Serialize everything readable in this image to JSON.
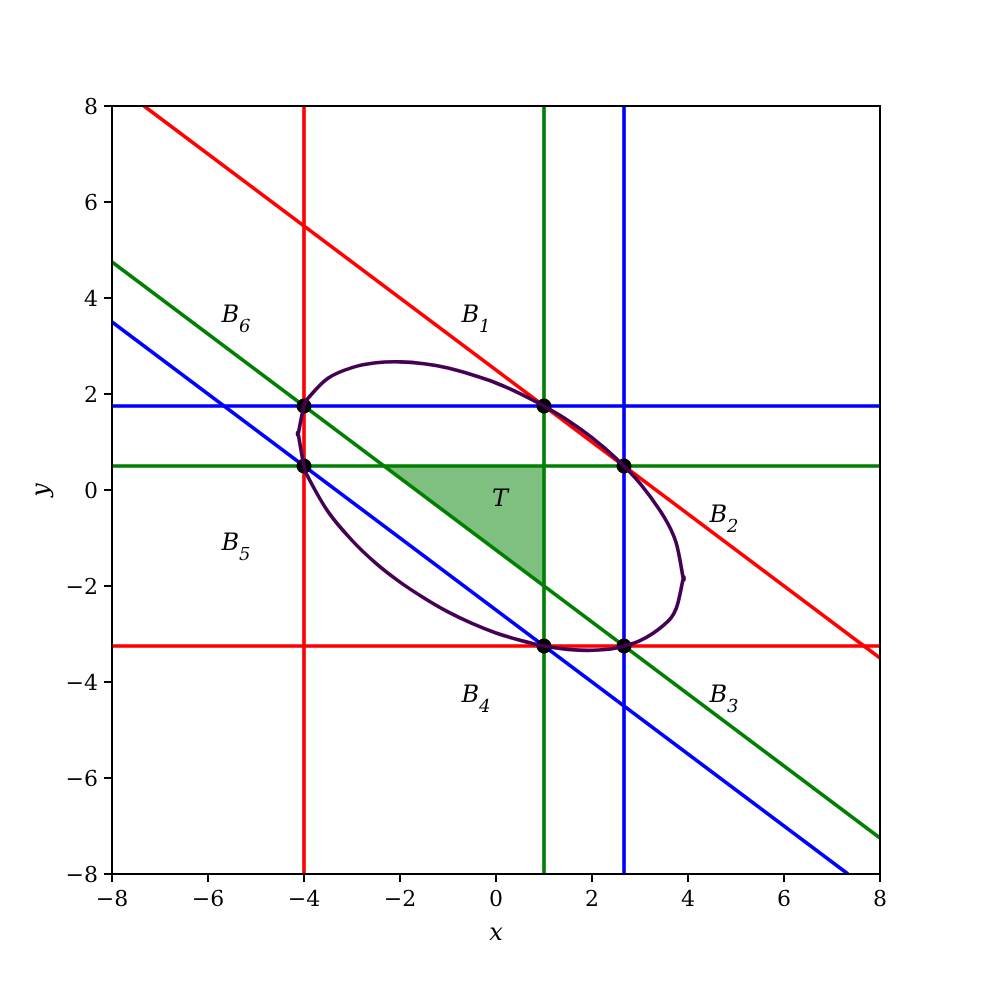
{
  "chart_data": {
    "type": "line",
    "xlabel": "x",
    "ylabel": "y",
    "xlim": [
      -8,
      8
    ],
    "ylim": [
      -8,
      8
    ],
    "xticks": [
      {
        "value": -8,
        "label": "−8"
      },
      {
        "value": -6,
        "label": "−6"
      },
      {
        "value": -4,
        "label": "−4"
      },
      {
        "value": -2,
        "label": "−2"
      },
      0,
      2,
      4,
      6,
      8
    ],
    "yticks": [
      {
        "value": -8,
        "label": "−8"
      },
      {
        "value": -6,
        "label": "−6"
      },
      {
        "value": -4,
        "label": "−4"
      },
      {
        "value": -2,
        "label": "−2"
      },
      0,
      2,
      4,
      6,
      8
    ],
    "grid": false,
    "marker": "none",
    "series": [
      {
        "color": "#ff0000",
        "x": [
          -4,
          -4
        ],
        "values": [
          -8,
          8
        ]
      },
      {
        "color": "#008000",
        "x": [
          1,
          1
        ],
        "values": [
          -8,
          8
        ]
      },
      {
        "color": "#0000ff",
        "x": [
          2.667,
          2.667
        ],
        "values": [
          -8,
          8
        ]
      },
      {
        "color": "#0000ff",
        "x": [
          -8,
          8
        ],
        "values": [
          1.75,
          1.75
        ]
      },
      {
        "color": "#008000",
        "x": [
          -8,
          8
        ],
        "values": [
          0.5,
          0.5
        ]
      },
      {
        "color": "#ff0000",
        "x": [
          -8,
          8
        ],
        "values": [
          -3.25,
          -3.25
        ]
      },
      {
        "color": "#ff0000",
        "x": [
          -7.333,
          8
        ],
        "values": [
          8,
          -3.5
        ]
      },
      {
        "color": "#008000",
        "x": [
          -8,
          8
        ],
        "values": [
          4.75,
          -7.25
        ]
      },
      {
        "color": "#0000ff",
        "x": [
          -8,
          7.333
        ],
        "values": [
          3.5,
          -8
        ]
      },
      {
        "type": "scatter",
        "color": "#000000",
        "marker": "circle",
        "x": [
          -4,
          -4,
          1,
          2.667,
          1,
          2.667
        ],
        "values": [
          1.75,
          0.5,
          1.75,
          0.5,
          -3.25,
          -3.25
        ]
      }
    ],
    "annotations": [
      "B$_{1}$",
      "B$_{2}$",
      "B$_{3}$",
      "B$_{4}$",
      "B$_{5}$",
      "B$_{6}$",
      "T"
    ]
  }
}
